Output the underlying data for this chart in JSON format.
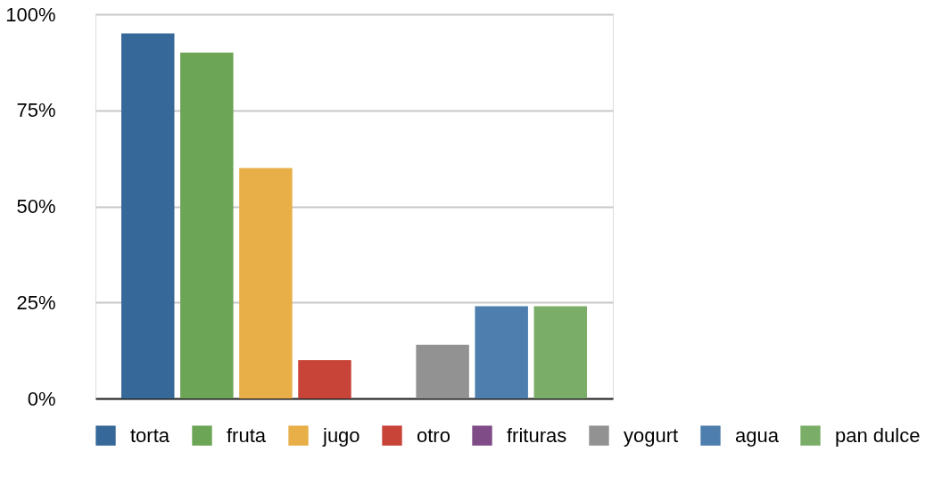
{
  "chart_data": {
    "type": "bar",
    "categories": [
      null
    ],
    "series": [
      {
        "name": "torta",
        "color": "#366899",
        "values": [
          95
        ]
      },
      {
        "name": "fruta",
        "color": "#6ba555",
        "values": [
          90
        ]
      },
      {
        "name": "jugo",
        "color": "#e8ae48",
        "values": [
          60
        ]
      },
      {
        "name": "otro",
        "color": "#c84338",
        "values": [
          10
        ]
      },
      {
        "name": "frituras",
        "color": "#7f4c88",
        "values": [
          0
        ]
      },
      {
        "name": "yogurt",
        "color": "#929292",
        "values": [
          14
        ]
      },
      {
        "name": "agua",
        "color": "#4e7eae",
        "values": [
          24
        ]
      },
      {
        "name": "pan dulce",
        "color": "#7aad68",
        "values": [
          24
        ]
      }
    ],
    "ylim": [
      0,
      100
    ],
    "yticks": [
      {
        "value": 0,
        "label": "0%"
      },
      {
        "value": 25,
        "label": "25%"
      },
      {
        "value": 50,
        "label": "50%"
      },
      {
        "value": 75,
        "label": "75%"
      },
      {
        "value": 100,
        "label": "100%"
      }
    ],
    "grid": "y",
    "legend": "bottom",
    "tick_labels": "y"
  }
}
